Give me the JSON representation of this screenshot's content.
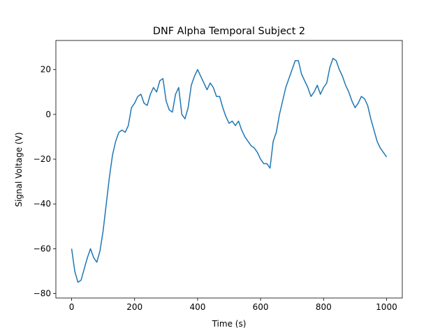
{
  "chart_data": {
    "type": "line",
    "title": "DNF Alpha Temporal Subject 2",
    "xlabel": "Time (s)",
    "ylabel": "Signal Voltage (V)",
    "xlim": [
      -50,
      1050
    ],
    "ylim": [
      -82,
      33
    ],
    "xticks": [
      0,
      200,
      400,
      600,
      800,
      1000
    ],
    "yticks": [
      -80,
      -60,
      -40,
      -20,
      0,
      20
    ],
    "grid": false,
    "legend": "none",
    "series": [
      {
        "color": "#1f77b4",
        "x": [
          0,
          10,
          20,
          30,
          40,
          50,
          60,
          70,
          80,
          90,
          100,
          110,
          120,
          130,
          140,
          150,
          160,
          170,
          180,
          190,
          200,
          210,
          220,
          230,
          240,
          250,
          260,
          270,
          280,
          290,
          300,
          310,
          320,
          330,
          340,
          350,
          360,
          370,
          380,
          390,
          400,
          410,
          420,
          430,
          440,
          450,
          460,
          470,
          480,
          490,
          500,
          510,
          520,
          530,
          540,
          550,
          560,
          570,
          580,
          590,
          600,
          610,
          620,
          630,
          640,
          650,
          660,
          670,
          680,
          690,
          700,
          710,
          720,
          730,
          740,
          750,
          760,
          770,
          780,
          790,
          800,
          810,
          820,
          830,
          840,
          850,
          860,
          870,
          880,
          890,
          900,
          910,
          920,
          930,
          940,
          950,
          960,
          970,
          980,
          990,
          1000
        ],
        "y": [
          -60,
          -70,
          -75,
          -74,
          -69,
          -64,
          -60,
          -64,
          -66,
          -61,
          -52,
          -40,
          -28,
          -18,
          -12,
          -8,
          -7,
          -8,
          -5,
          3,
          5,
          8,
          9,
          5,
          4,
          9,
          12,
          10,
          15,
          16,
          6,
          2,
          1,
          9,
          12,
          0,
          -2,
          3,
          13,
          17,
          20,
          17,
          14,
          11,
          14,
          12,
          8,
          8,
          3,
          -1,
          -4,
          -3,
          -5,
          -3,
          -7,
          -10,
          -12,
          -14,
          -15,
          -17,
          -20,
          -22,
          -22,
          -24,
          -12,
          -8,
          0,
          6,
          12,
          16,
          20,
          24,
          24,
          18,
          15,
          12,
          8,
          10,
          13,
          9,
          12,
          14,
          21,
          25,
          24,
          20,
          17,
          13,
          10,
          6,
          3,
          5,
          8,
          7,
          4,
          -2,
          -7,
          -12,
          -15,
          -17,
          -19
        ]
      }
    ]
  }
}
